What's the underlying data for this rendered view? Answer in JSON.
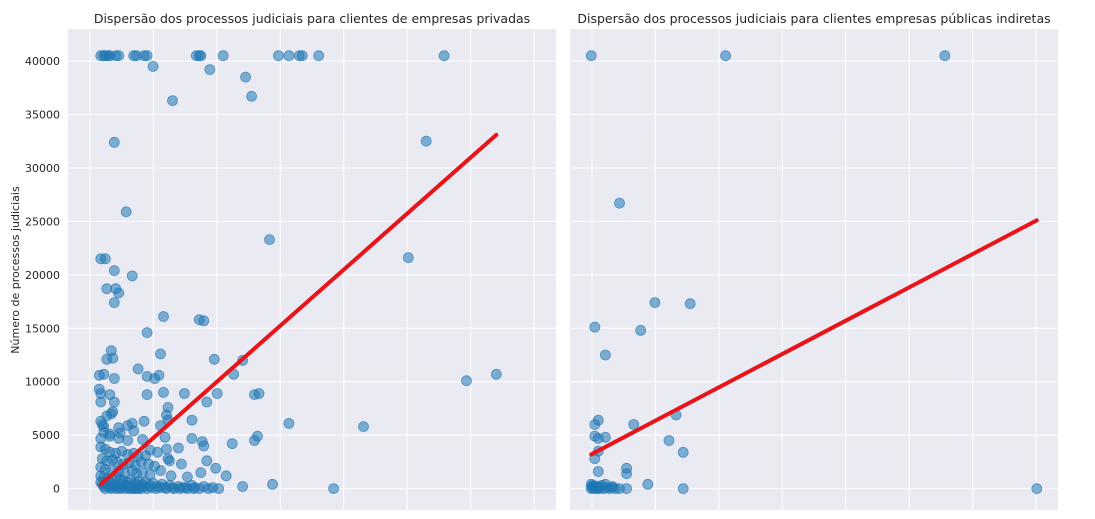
{
  "y_axis_label": "Número de processos judiciais",
  "style": {
    "plot_background": "#eaeaf2",
    "grid_color": "#ffffff",
    "point_color": "#1f77b4",
    "point_opacity": 0.55,
    "trend_color": "#e8141a",
    "text_color": "#262626"
  },
  "chart_data": [
    {
      "type": "scatter",
      "title": "Dispersão dos processos judiciais para clientes de empresas privadas",
      "ylabel": "Número de processos judiciais",
      "xlabel": "",
      "ylim": [
        -2000,
        43000
      ],
      "yticks": [
        0,
        5000,
        10000,
        15000,
        20000,
        25000,
        30000,
        35000,
        40000
      ],
      "xlim": [
        -22,
        305
      ],
      "grid": true,
      "x_tick_labels_visible": false,
      "trend_line": {
        "x": [
          0,
          265
        ],
        "y": [
          400,
          33100
        ]
      },
      "points": [
        [
          0,
          40500
        ],
        [
          2,
          40500
        ],
        [
          3,
          40500
        ],
        [
          5,
          40500
        ],
        [
          6,
          40500
        ],
        [
          10,
          40500
        ],
        [
          12,
          40500
        ],
        [
          22,
          40500
        ],
        [
          24,
          40500
        ],
        [
          29,
          40500
        ],
        [
          31,
          40500
        ],
        [
          64,
          40500
        ],
        [
          66,
          40500
        ],
        [
          67,
          40500
        ],
        [
          82,
          40500
        ],
        [
          119,
          40500
        ],
        [
          126,
          40500
        ],
        [
          133,
          40500
        ],
        [
          135,
          40500
        ],
        [
          146,
          40500
        ],
        [
          230,
          40500
        ],
        [
          35,
          39500
        ],
        [
          73,
          39200
        ],
        [
          97,
          38500
        ],
        [
          101,
          36700
        ],
        [
          48,
          36300
        ],
        [
          218,
          32500
        ],
        [
          9,
          32400
        ],
        [
          17,
          25900
        ],
        [
          113,
          23300
        ],
        [
          0,
          21500
        ],
        [
          3,
          21500
        ],
        [
          206,
          21600
        ],
        [
          9,
          20400
        ],
        [
          21,
          19900
        ],
        [
          10,
          18700
        ],
        [
          12,
          18300
        ],
        [
          4,
          18700
        ],
        [
          9,
          17400
        ],
        [
          42,
          16100
        ],
        [
          66,
          15800
        ],
        [
          69,
          15700
        ],
        [
          31,
          14600
        ],
        [
          76,
          12100
        ],
        [
          95,
          12000
        ],
        [
          40,
          12600
        ],
        [
          7,
          12900
        ],
        [
          8,
          12200
        ],
        [
          4,
          12100
        ],
        [
          89,
          10700
        ],
        [
          25,
          11200
        ],
        [
          -1,
          10600
        ],
        [
          2,
          10700
        ],
        [
          9,
          10300
        ],
        [
          31,
          10500
        ],
        [
          36,
          10300
        ],
        [
          39,
          10600
        ],
        [
          245,
          10100
        ],
        [
          265,
          10700
        ],
        [
          -1,
          9300
        ],
        [
          0,
          8900
        ],
        [
          6,
          8800
        ],
        [
          9,
          8100
        ],
        [
          0,
          8100
        ],
        [
          31,
          8800
        ],
        [
          42,
          9000
        ],
        [
          56,
          8900
        ],
        [
          78,
          8900
        ],
        [
          103,
          8800
        ],
        [
          106,
          8900
        ],
        [
          71,
          8100
        ],
        [
          45,
          7600
        ],
        [
          44,
          6900
        ],
        [
          61,
          6400
        ],
        [
          0,
          6300
        ],
        [
          4,
          6800
        ],
        [
          7,
          7000
        ],
        [
          8,
          7200
        ],
        [
          1,
          6000
        ],
        [
          2,
          5800
        ],
        [
          12,
          5700
        ],
        [
          18,
          5900
        ],
        [
          21,
          6100
        ],
        [
          29,
          6300
        ],
        [
          40,
          5900
        ],
        [
          45,
          6400
        ],
        [
          126,
          6100
        ],
        [
          176,
          5800
        ],
        [
          2,
          5300
        ],
        [
          6,
          5100
        ],
        [
          13,
          5200
        ],
        [
          22,
          5400
        ],
        [
          0,
          4700
        ],
        [
          6,
          4900
        ],
        [
          12,
          4700
        ],
        [
          18,
          4500
        ],
        [
          28,
          4600
        ],
        [
          43,
          4800
        ],
        [
          61,
          4700
        ],
        [
          68,
          4400
        ],
        [
          69,
          4000
        ],
        [
          88,
          4200
        ],
        [
          103,
          4500
        ],
        [
          105,
          4900
        ],
        [
          0,
          3900
        ],
        [
          3,
          3700
        ],
        [
          6,
          3400
        ],
        [
          10,
          3300
        ],
        [
          14,
          3500
        ],
        [
          18,
          3200
        ],
        [
          22,
          3300
        ],
        [
          25,
          3000
        ],
        [
          30,
          3100
        ],
        [
          33,
          3600
        ],
        [
          38,
          3400
        ],
        [
          44,
          3700
        ],
        [
          52,
          3800
        ],
        [
          1,
          2800
        ],
        [
          4,
          2600
        ],
        [
          8,
          2700
        ],
        [
          11,
          2500
        ],
        [
          15,
          2300
        ],
        [
          19,
          2400
        ],
        [
          23,
          2200
        ],
        [
          27,
          2500
        ],
        [
          32,
          2300
        ],
        [
          36,
          2100
        ],
        [
          45,
          2800
        ],
        [
          46,
          2600
        ],
        [
          54,
          2300
        ],
        [
          71,
          2600
        ],
        [
          77,
          1900
        ],
        [
          84,
          1200
        ],
        [
          0,
          2000
        ],
        [
          3,
          1800
        ],
        [
          7,
          1700
        ],
        [
          12,
          1600
        ],
        [
          16,
          1500
        ],
        [
          21,
          1700
        ],
        [
          24,
          1400
        ],
        [
          28,
          1500
        ],
        [
          33,
          1300
        ],
        [
          40,
          1700
        ],
        [
          47,
          1200
        ],
        [
          58,
          1100
        ],
        [
          67,
          1500
        ],
        [
          95,
          200
        ],
        [
          115,
          400
        ],
        [
          156,
          0
        ],
        [
          0,
          1200
        ],
        [
          2,
          1000
        ],
        [
          5,
          900
        ],
        [
          8,
          800
        ],
        [
          10,
          1100
        ],
        [
          13,
          900
        ],
        [
          15,
          700
        ],
        [
          18,
          600
        ],
        [
          20,
          800
        ],
        [
          23,
          500
        ],
        [
          25,
          700
        ],
        [
          28,
          400
        ],
        [
          30,
          600
        ],
        [
          33,
          300
        ],
        [
          35,
          500
        ],
        [
          38,
          200
        ],
        [
          41,
          400
        ],
        [
          43,
          100
        ],
        [
          46,
          300
        ],
        [
          49,
          0
        ],
        [
          52,
          200
        ],
        [
          55,
          100
        ],
        [
          58,
          0
        ],
        [
          61,
          300
        ],
        [
          63,
          100
        ],
        [
          66,
          0
        ],
        [
          69,
          200
        ],
        [
          72,
          0
        ],
        [
          75,
          100
        ],
        [
          79,
          0
        ],
        [
          0,
          600
        ],
        [
          1,
          400
        ],
        [
          2,
          200
        ],
        [
          3,
          0
        ],
        [
          4,
          500
        ],
        [
          5,
          300
        ],
        [
          6,
          100
        ],
        [
          7,
          0
        ],
        [
          8,
          400
        ],
        [
          9,
          200
        ],
        [
          10,
          0
        ],
        [
          11,
          300
        ],
        [
          12,
          100
        ],
        [
          13,
          0
        ],
        [
          14,
          400
        ],
        [
          15,
          200
        ],
        [
          16,
          0
        ],
        [
          17,
          300
        ],
        [
          18,
          100
        ],
        [
          19,
          0
        ],
        [
          20,
          200
        ],
        [
          21,
          0
        ],
        [
          22,
          100
        ],
        [
          23,
          0
        ],
        [
          24,
          300
        ],
        [
          25,
          0
        ],
        [
          26,
          100
        ],
        [
          27,
          0
        ],
        [
          29,
          200
        ],
        [
          31,
          0
        ],
        [
          34,
          100
        ],
        [
          37,
          0
        ],
        [
          40,
          100
        ],
        [
          44,
          0
        ],
        [
          48,
          100
        ],
        [
          53,
          0
        ],
        [
          57,
          100
        ],
        [
          62,
          0
        ]
      ]
    },
    {
      "type": "scatter",
      "title": "Dispersão dos processos judiciais para clientes empresas públicas indiretas",
      "ylabel": "",
      "xlabel": "",
      "ylim": [
        -2000,
        43000
      ],
      "yticks": [
        0,
        5000,
        10000,
        15000,
        20000,
        25000,
        30000,
        35000,
        40000
      ],
      "xlim": [
        -3,
        66
      ],
      "grid": true,
      "x_tick_labels_visible": false,
      "trend_line": {
        "x": [
          0,
          63
        ],
        "y": [
          3200,
          25100
        ]
      },
      "points": [
        [
          0,
          40500
        ],
        [
          19,
          40500
        ],
        [
          50,
          40500
        ],
        [
          4,
          26700
        ],
        [
          9,
          17400
        ],
        [
          14,
          17300
        ],
        [
          7,
          14800
        ],
        [
          0.5,
          15100
        ],
        [
          2,
          12500
        ],
        [
          6,
          6000
        ],
        [
          12,
          6900
        ],
        [
          0.5,
          6000
        ],
        [
          1,
          6400
        ],
        [
          0.5,
          4900
        ],
        [
          1,
          4700
        ],
        [
          2,
          4800
        ],
        [
          11,
          4500
        ],
        [
          13,
          3400
        ],
        [
          1,
          3500
        ],
        [
          0.5,
          2800
        ],
        [
          1,
          1600
        ],
        [
          5,
          1900
        ],
        [
          5,
          1400
        ],
        [
          0,
          400
        ],
        [
          1,
          200
        ],
        [
          2,
          400
        ],
        [
          3,
          100
        ],
        [
          4,
          0
        ],
        [
          5,
          0
        ],
        [
          8,
          400
        ],
        [
          13,
          0
        ],
        [
          63,
          0
        ],
        [
          0,
          0
        ],
        [
          0.2,
          100
        ],
        [
          0.4,
          0
        ],
        [
          0.6,
          200
        ],
        [
          0.8,
          0
        ],
        [
          1,
          100
        ],
        [
          1.2,
          0
        ],
        [
          1.5,
          300
        ],
        [
          1.8,
          0
        ],
        [
          2.2,
          100
        ],
        [
          2.6,
          0
        ],
        [
          3,
          200
        ],
        [
          3.4,
          0
        ],
        [
          0.3,
          300
        ],
        [
          0.1,
          200
        ]
      ]
    }
  ]
}
